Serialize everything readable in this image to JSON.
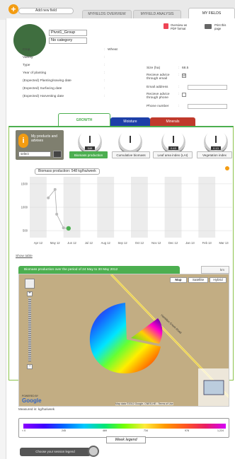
{
  "header": {
    "add_field_label": "Add new field",
    "tabs": [
      {
        "label": "MYFIELDS OVERVIEW"
      },
      {
        "label": "MYFIELD ANALYSIS"
      },
      {
        "label": "MY FIELDS"
      }
    ]
  },
  "field": {
    "name": "Pivot1_Group",
    "category": "No category",
    "overview_pdf_label": "Overview as PDF format",
    "print_label": "Print this page"
  },
  "info_left": [
    {
      "label": "Crop",
      "value": "Wheat"
    },
    {
      "label": "Variety",
      "value": ""
    },
    {
      "label": "Type",
      "value": ""
    },
    {
      "label": "Year of planting",
      "value": ""
    },
    {
      "label": "(Expected) Planting/sowing date",
      "value": ""
    },
    {
      "label": "(Expected) Surfacing date",
      "value": ""
    },
    {
      "label": "(Expected) Harvesting date",
      "value": ""
    }
  ],
  "info_right": {
    "size_label": "Size (ha)",
    "size_value": "68.5",
    "email_advice_label": "Recieve advice through email",
    "email_advice_checked": "☑",
    "email_label": "Email address",
    "phone_advice_label": "Recieve advice through phone",
    "phone_label": "Phone number"
  },
  "category_tabs": {
    "growth": "GROWTH",
    "moisture": "Moisture",
    "minerals": "Minerals"
  },
  "products": {
    "text": "My products and advises",
    "select_value": "select"
  },
  "gauges": [
    {
      "label": "Biomass production",
      "badge": "548",
      "active": true
    },
    {
      "label": "Cumulative biomass",
      "badge": "",
      "active": false
    },
    {
      "label": "Leaf area index (LAI)",
      "badge": "0.43",
      "active": false
    },
    {
      "label": "Vegetation index",
      "badge": "0.13",
      "active": false
    }
  ],
  "chart_data": {
    "type": "line",
    "title": "Biomass production: 548 kg/ha/week",
    "xlabel": "",
    "ylabel": "",
    "categories": [
      "Apr 12",
      "May 12",
      "Jun 12",
      "Jul 12",
      "Aug 12",
      "Sep 12",
      "Oct 12",
      "Nov 12",
      "Dec 12",
      "Jan 13",
      "Feb 13",
      "Mar 13"
    ],
    "yticks": [
      500,
      1000,
      1500
    ],
    "ylim": [
      350,
      1650
    ],
    "series": [
      {
        "x": [
          1.1,
          1.5,
          1.6,
          2.0,
          2.3
        ],
        "values": [
          1200,
          1380,
          850,
          560,
          548
        ]
      }
    ],
    "grid": "alternating-column-bands"
  },
  "show_table_label": "Show table",
  "map": {
    "title": "Biomass production over the period of 24 May to 30 May 2012",
    "tool_label": "km",
    "types": [
      "Map",
      "Satellite",
      "Hybrid"
    ],
    "road_label": "Hamilton Creek Road",
    "attribution": "Map data ©2012 Google, CNES-HE - Terms of Use",
    "google_logo": "Google",
    "powered_by": "POWERED BY"
  },
  "measured_label": "Measured in: kg/ha/week",
  "legend": {
    "ticks": [
      "< 0",
      "245",
      "469",
      "734",
      "978",
      "1,224"
    ],
    "week_label": "Week legend"
  },
  "session_button": "Choose your session legend",
  "colors": {
    "accent_green": "#4caf50",
    "moisture_blue": "#1d3fa8",
    "minerals_red": "#c0392b",
    "orange": "#f39c12"
  }
}
